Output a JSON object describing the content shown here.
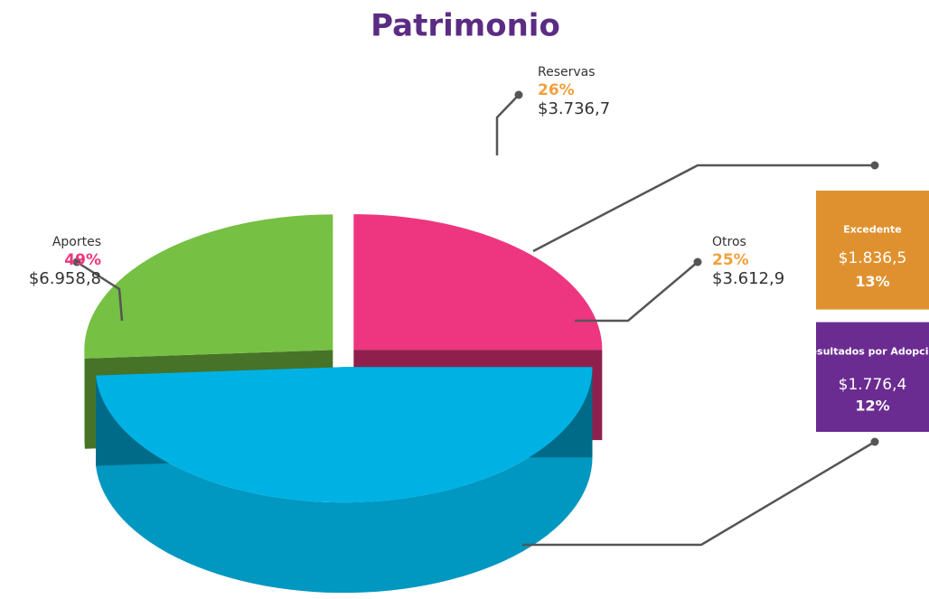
{
  "chart_data": {
    "type": "pie3d",
    "title": "Patrimonio",
    "categories": [
      "Aportes",
      "Reservas",
      "Otros"
    ],
    "values": [
      49,
      26,
      25
    ],
    "value_labels": [
      "49%",
      "26%",
      "25%"
    ],
    "amounts": [
      "$6.958,8",
      "$3.736,7",
      "$3.612,9"
    ],
    "colors": [
      "#00b2e3",
      "#76c043",
      "#ee3680"
    ],
    "label_colors": [
      "#ee3680",
      "#f0a03c",
      "#f0a03c"
    ],
    "breakdown": {
      "of": 2,
      "categories": [
        "Excedente",
        "Resultados por Adopción"
      ],
      "values": [
        13,
        12
      ],
      "value_labels": [
        "13%",
        "12%"
      ],
      "amounts": [
        "$1.836,5",
        "$1.776,4"
      ],
      "colors": [
        "#e0912f",
        "#6b2c91"
      ]
    }
  }
}
